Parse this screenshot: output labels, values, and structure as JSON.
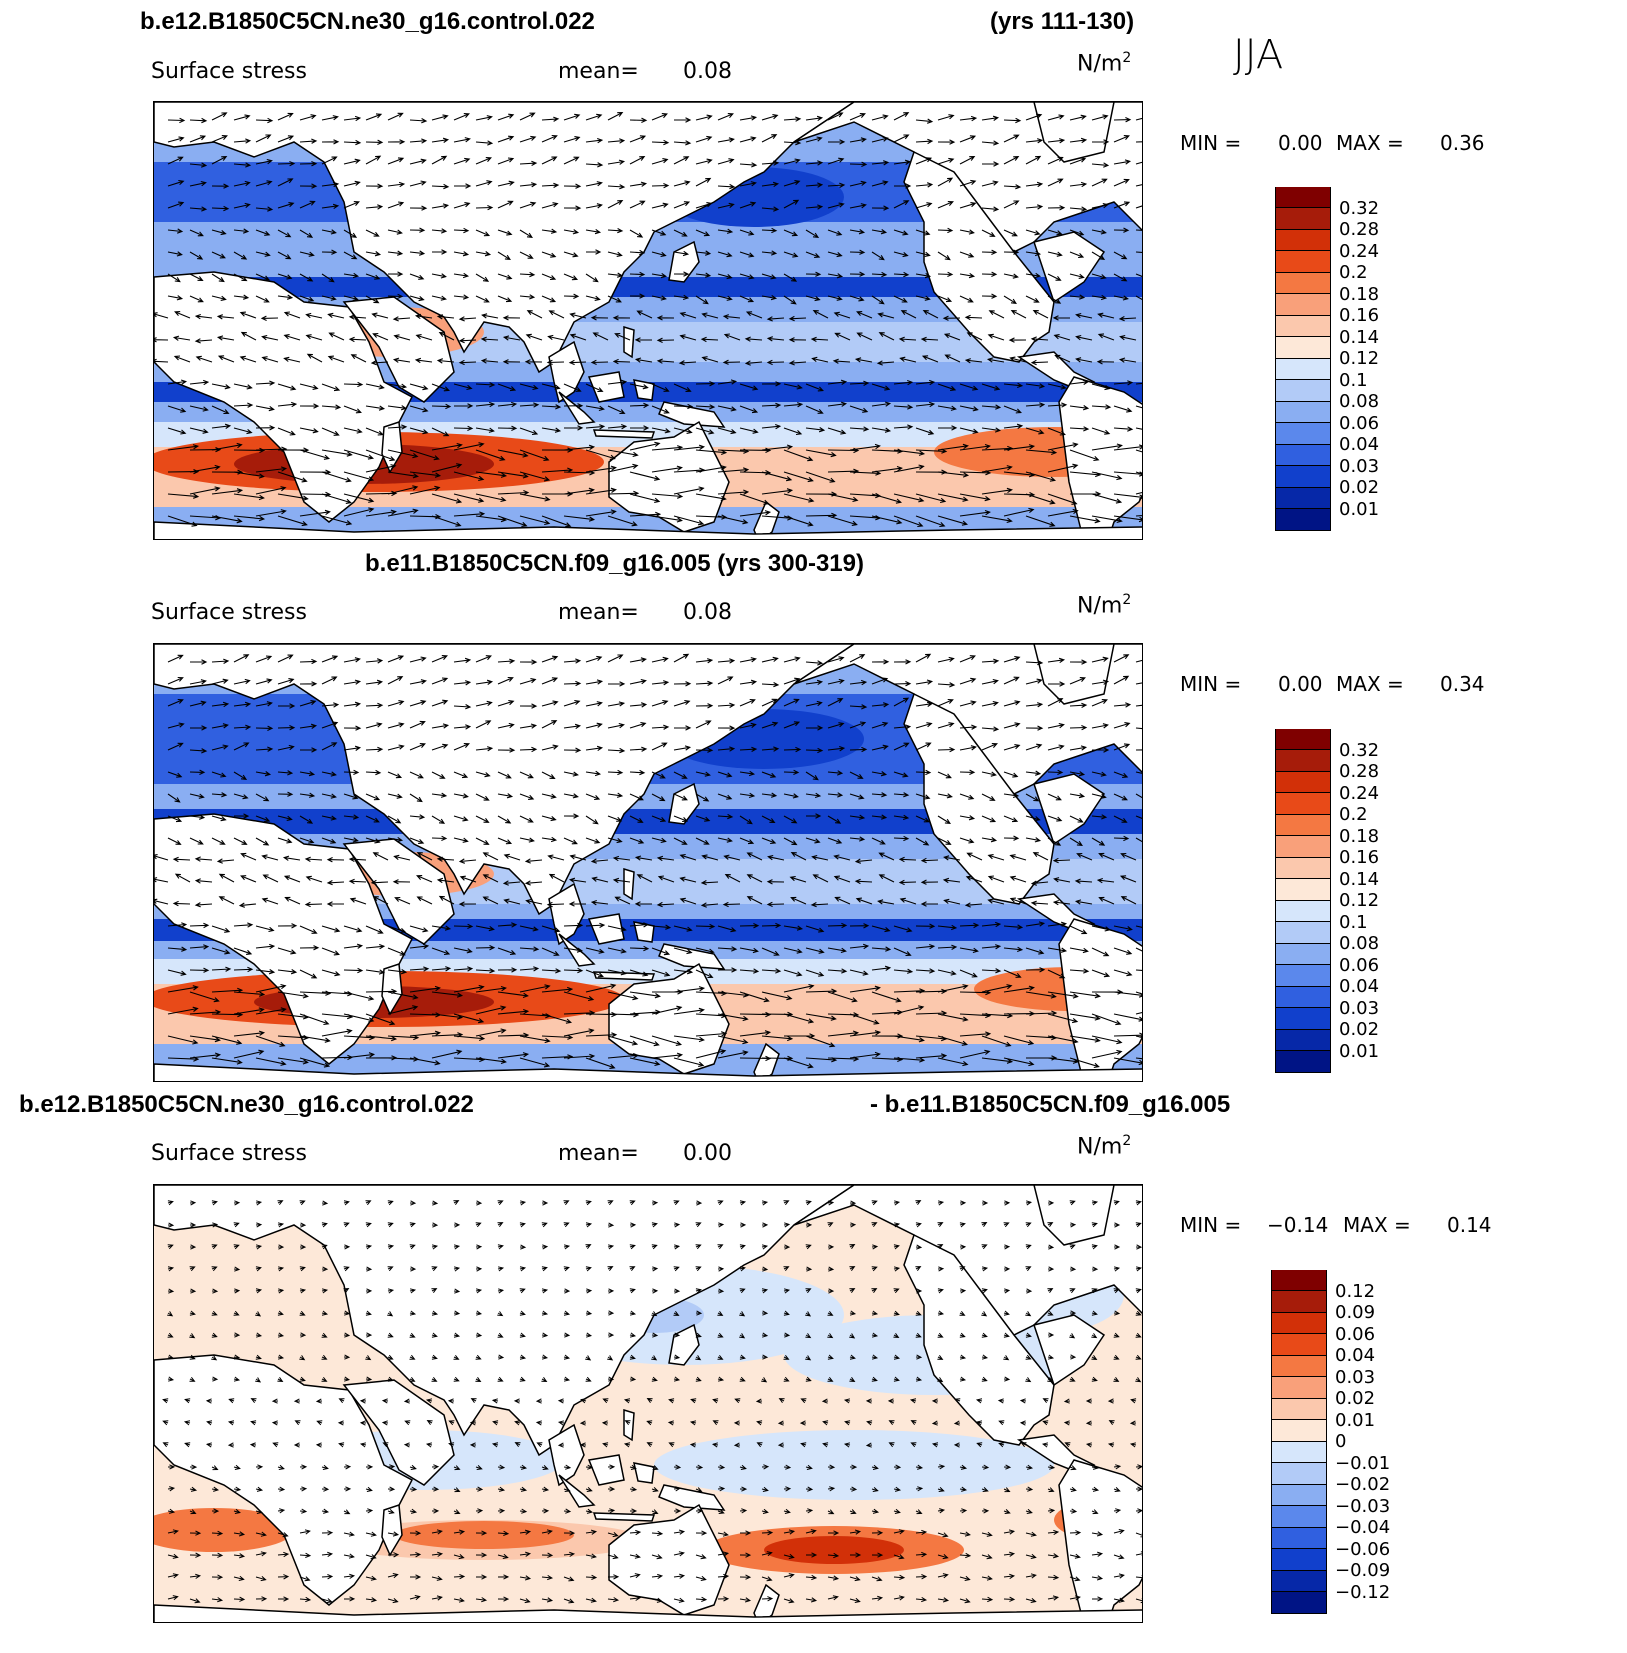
{
  "season": "JJA",
  "units_base": "N/m",
  "units_sup": "2",
  "panels": [
    {
      "title_left": "b.e12.B1850C5CN.ne30_g16.control.022",
      "title_right": "(yrs 111-130)",
      "variable": "Surface stress",
      "mean_label": "mean=",
      "mean_value": "0.08",
      "min_label": "MIN =",
      "min_value": "0.00",
      "max_label": "MAX =",
      "max_value": "0.36",
      "colorbar": {
        "labels": [
          "0.32",
          "0.28",
          "0.24",
          "0.2",
          "0.18",
          "0.16",
          "0.14",
          "0.12",
          "0.1",
          "0.08",
          "0.06",
          "0.04",
          "0.03",
          "0.02",
          "0.01"
        ],
        "colors": [
          "#7f0000",
          "#a61c0a",
          "#d23008",
          "#e84a18",
          "#f47842",
          "#f9a07a",
          "#fbc8ad",
          "#fde8d8",
          "#d6e6fb",
          "#b2cbf7",
          "#8aaef2",
          "#5b88ec",
          "#3060e0",
          "#1140cc",
          "#0628a8",
          "#001485"
        ]
      }
    },
    {
      "title_center": "b.e11.B1850C5CN.f09_g16.005 (yrs 300-319)",
      "variable": "Surface stress",
      "mean_label": "mean=",
      "mean_value": "0.08",
      "min_label": "MIN =",
      "min_value": "0.00",
      "max_label": "MAX =",
      "max_value": "0.34",
      "colorbar": {
        "labels": [
          "0.32",
          "0.28",
          "0.24",
          "0.2",
          "0.18",
          "0.16",
          "0.14",
          "0.12",
          "0.1",
          "0.08",
          "0.06",
          "0.04",
          "0.03",
          "0.02",
          "0.01"
        ],
        "colors": [
          "#7f0000",
          "#a61c0a",
          "#d23008",
          "#e84a18",
          "#f47842",
          "#f9a07a",
          "#fbc8ad",
          "#fde8d8",
          "#d6e6fb",
          "#b2cbf7",
          "#8aaef2",
          "#5b88ec",
          "#3060e0",
          "#1140cc",
          "#0628a8",
          "#001485"
        ]
      }
    },
    {
      "title_left": "b.e12.B1850C5CN.ne30_g16.control.022",
      "title_right": "- b.e11.B1850C5CN.f09_g16.005",
      "variable": "Surface stress",
      "mean_label": "mean=",
      "mean_value": "0.00",
      "min_label": "MIN =",
      "min_value": "−0.14",
      "max_label": "MAX =",
      "max_value": "0.14",
      "colorbar": {
        "labels": [
          "0.12",
          "0.09",
          "0.06",
          "0.04",
          "0.03",
          "0.02",
          "0.01",
          "0",
          "−0.01",
          "−0.02",
          "−0.03",
          "−0.04",
          "−0.06",
          "−0.09",
          "−0.12"
        ],
        "colors": [
          "#7f0000",
          "#a61c0a",
          "#d23008",
          "#e84a18",
          "#f47842",
          "#f9a07a",
          "#fbc8ad",
          "#fde8d8",
          "#d6e6fb",
          "#b2cbf7",
          "#8aaef2",
          "#5b88ec",
          "#3060e0",
          "#1140cc",
          "#0628a8",
          "#001485"
        ]
      }
    }
  ]
}
